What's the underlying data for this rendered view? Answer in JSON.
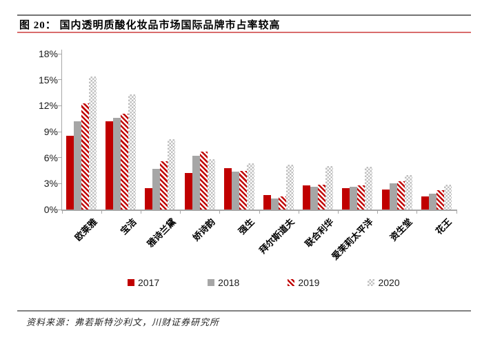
{
  "header": {
    "title": "图 20： 国内透明质酸化妆品市场国际品牌市占率较高"
  },
  "footer": {
    "source": "资料来源：弗若斯特沙利文，川财证券研究所"
  },
  "colors": {
    "accent_red": "#C00000",
    "accent_line_red": "#D96C6C",
    "series_gray": "#A6A6A6",
    "check_gray": "#BFBFBF",
    "axis_gray": "#A6A6A6",
    "rule_dark_gray": "#737373",
    "rule_footer_gray": "#808080",
    "text_black": "#1a1a1a"
  },
  "chart_data": {
    "type": "bar",
    "title": "",
    "xlabel": "",
    "ylabel": "",
    "ylim": [
      0,
      18
    ],
    "ytick_step": 3,
    "ytick_suffix": "%",
    "grid": false,
    "legend_position": "bottom",
    "categories": [
      "欧莱雅",
      "宝洁",
      "雅诗兰黛",
      "娇诗韵",
      "强生",
      "拜尔斯道夫",
      "联合利华",
      "爱茉莉太平洋",
      "资生堂",
      "花王"
    ],
    "series": [
      {
        "name": "2017",
        "style": "solid-red",
        "values": [
          8.5,
          10.2,
          2.5,
          4.2,
          4.8,
          1.7,
          2.8,
          2.5,
          2.3,
          1.5
        ]
      },
      {
        "name": "2018",
        "style": "solid-gray",
        "values": [
          10.2,
          10.6,
          4.7,
          6.2,
          4.4,
          1.3,
          2.6,
          2.6,
          3.0,
          1.8
        ]
      },
      {
        "name": "2019",
        "style": "hatch-red",
        "values": [
          12.3,
          11.1,
          5.6,
          6.7,
          4.5,
          1.5,
          2.9,
          2.8,
          3.3,
          2.2
        ]
      },
      {
        "name": "2020",
        "style": "check-gray",
        "values": [
          15.4,
          13.3,
          8.1,
          5.8,
          5.3,
          5.2,
          5.0,
          4.9,
          4.0,
          2.9
        ]
      }
    ]
  }
}
